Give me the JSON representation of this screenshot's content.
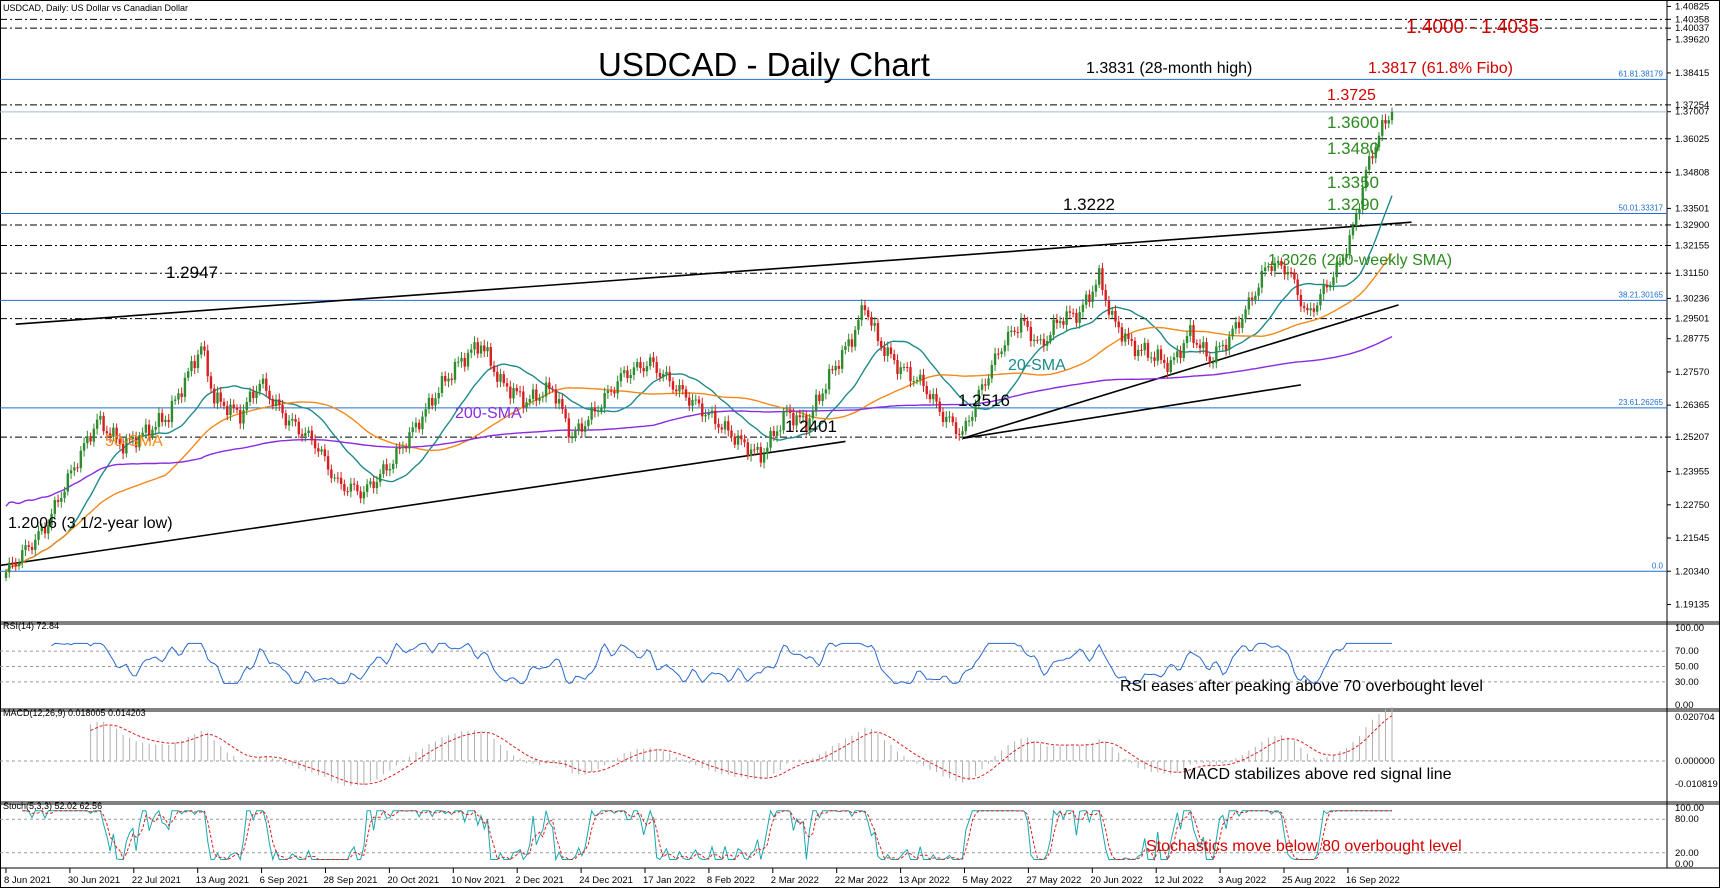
{
  "window": {
    "symbol_header": "USDCAD, Daily:  US Dollar vs Canadian Dollar"
  },
  "chart_data": [
    {
      "type": "candlestick",
      "panel": "price",
      "title": "USDCAD - Daily Chart",
      "ylim": [
        1.185,
        1.4095
      ],
      "y_ticks": [
        "1.40825",
        "1.40358",
        "1.40037",
        "1.39620",
        "1.38415",
        "1.37254",
        "1.37007",
        "1.36025",
        "1.34808",
        "1.33501",
        "1.32900",
        "1.32155",
        "1.31150",
        "1.30236",
        "1.29501",
        "1.28775",
        "1.27570",
        "1.26365",
        "1.25207",
        "1.23955",
        "1.22750",
        "1.21545",
        "1.20340",
        "1.19135"
      ],
      "y_tick_values": [
        1.40825,
        1.40358,
        1.40037,
        1.3962,
        1.38415,
        1.37254,
        1.37007,
        1.36025,
        1.34808,
        1.33501,
        1.329,
        1.32155,
        1.3115,
        1.30236,
        1.29501,
        1.28775,
        1.2757,
        1.26365,
        1.25207,
        1.23955,
        1.2275,
        1.21545,
        1.2034,
        1.19135
      ],
      "x_ticks": [
        "8 Jun 2021",
        "30 Jun 2021",
        "22 Jul 2021",
        "13 Aug 2021",
        "6 Sep 2021",
        "28 Sep 2021",
        "20 Oct 2021",
        "10 Nov 2021",
        "2 Dec 2021",
        "24 Dec 2021",
        "17 Jan 2022",
        "8 Feb 2022",
        "2 Mar 2022",
        "22 Mar 2022",
        "13 Apr 2022",
        "5 May 2022",
        "27 May 2022",
        "20 Jun 2022",
        "12 Jul 2022",
        "3 Aug 2022",
        "25 Aug 2022",
        "16 Sep 2022"
      ],
      "close_anchors": [
        [
          0,
          1.203
        ],
        [
          12,
          1.219
        ],
        [
          20,
          1.239
        ],
        [
          28,
          1.258
        ],
        [
          36,
          1.249
        ],
        [
          42,
          1.253
        ],
        [
          50,
          1.26
        ],
        [
          60,
          1.285
        ],
        [
          64,
          1.266
        ],
        [
          72,
          1.26
        ],
        [
          78,
          1.272
        ],
        [
          86,
          1.259
        ],
        [
          95,
          1.25
        ],
        [
          102,
          1.235
        ],
        [
          110,
          1.232
        ],
        [
          118,
          1.242
        ],
        [
          126,
          1.256
        ],
        [
          134,
          1.271
        ],
        [
          140,
          1.28
        ],
        [
          146,
          1.286
        ],
        [
          152,
          1.272
        ],
        [
          160,
          1.265
        ],
        [
          168,
          1.27
        ],
        [
          174,
          1.252
        ],
        [
          180,
          1.26
        ],
        [
          190,
          1.275
        ],
        [
          198,
          1.279
        ],
        [
          206,
          1.27
        ],
        [
          212,
          1.264
        ],
        [
          220,
          1.256
        ],
        [
          226,
          1.25
        ],
        [
          232,
          1.245
        ],
        [
          240,
          1.261
        ],
        [
          246,
          1.257
        ],
        [
          254,
          1.276
        ],
        [
          260,
          1.288
        ],
        [
          264,
          1.3
        ],
        [
          268,
          1.287
        ],
        [
          274,
          1.278
        ],
        [
          282,
          1.271
        ],
        [
          288,
          1.26
        ],
        [
          294,
          1.253
        ],
        [
          300,
          1.27
        ],
        [
          306,
          1.285
        ],
        [
          312,
          1.294
        ],
        [
          318,
          1.285
        ],
        [
          324,
          1.295
        ],
        [
          330,
          1.297
        ],
        [
          336,
          1.31
        ],
        [
          340,
          1.295
        ],
        [
          346,
          1.285
        ],
        [
          352,
          1.282
        ],
        [
          358,
          1.278
        ],
        [
          364,
          1.29
        ],
        [
          370,
          1.28
        ],
        [
          376,
          1.288
        ],
        [
          382,
          1.3
        ],
        [
          388,
          1.315
        ],
        [
          394,
          1.313
        ],
        [
          400,
          1.296
        ],
        [
          404,
          1.303
        ],
        [
          410,
          1.315
        ],
        [
          414,
          1.327
        ],
        [
          418,
          1.348
        ],
        [
          422,
          1.362
        ],
        [
          426,
          1.37
        ]
      ],
      "total_bars": 427,
      "annotations": [
        {
          "text": "1.4000 - 1.4035",
          "color": "#d40000",
          "level": 1.4018
        },
        {
          "text": "1.3831 (28-month high)",
          "color": "#000000"
        },
        {
          "text": "1.3817 (61.8% Fibo)",
          "color": "#d40000",
          "level": 1.38179
        },
        {
          "text": "1.3725",
          "color": "#d40000",
          "level": 1.37254
        },
        {
          "text": "1.3600",
          "color": "#2b8a1e",
          "level": 1.36025
        },
        {
          "text": "1.3480",
          "color": "#2b8a1e",
          "level": 1.34808
        },
        {
          "text": "1.3350",
          "color": "#2b8a1e",
          "level": 1.33501
        },
        {
          "text": "1.3290",
          "color": "#2b8a1e",
          "level": 1.329
        },
        {
          "text": "1.3222",
          "color": "#000000"
        },
        {
          "text": "1.3026 (200-weekly SMA)",
          "color": "#2b8a1e",
          "level": 1.30236
        },
        {
          "text": "1.2947",
          "color": "#000000"
        },
        {
          "text": "1.2516",
          "color": "#000000"
        },
        {
          "text": "1.2401",
          "color": "#000000"
        },
        {
          "text": "1.2006 (3 1/2-year low)",
          "color": "#000000"
        }
      ],
      "fib_labels": [
        "61.81.38179",
        "50.01.33317",
        "38.21.30165",
        "23.61.26265",
        "0.0"
      ],
      "series": [
        {
          "name": "20-SMA",
          "color": "#1f8a8a"
        },
        {
          "name": "50-SMA",
          "color": "#f28a1a"
        },
        {
          "name": "200-SMA",
          "color": "#8a2be2"
        }
      ]
    },
    {
      "type": "line",
      "panel": "rsi",
      "header": "RSI(14) 72.84",
      "y_ticks": [
        "100.00",
        "70.00",
        "50.00",
        "30.00",
        "0.00"
      ],
      "annotation": "RSI eases after peaking above 70 overbought level"
    },
    {
      "type": "bar",
      "panel": "macd",
      "header": "MACD(12,26,9) 0.018005 0.014203",
      "y_ticks": [
        "0.020704",
        "0.000000",
        "-0.010819"
      ],
      "annotation": "MACD stabilizes above red signal line"
    },
    {
      "type": "line",
      "panel": "stochastic",
      "header": "Stoch(5,3,3) 52.02 62.56",
      "y_ticks": [
        "100.00",
        "80.00",
        "20.00",
        "0.00"
      ],
      "annotation": "Stochastics move below 80 overbought level"
    }
  ],
  "colors": {
    "bull": "#2e8b2e",
    "bear": "#d62020",
    "red_text": "#d40000",
    "green_text": "#2b8a1e",
    "fib": "#1f6fd1",
    "rsi": "#2a6ad1",
    "signal": "#e02020",
    "macd_hist": "#b0b0b0",
    "stoch_main": "#1aa8b0"
  }
}
